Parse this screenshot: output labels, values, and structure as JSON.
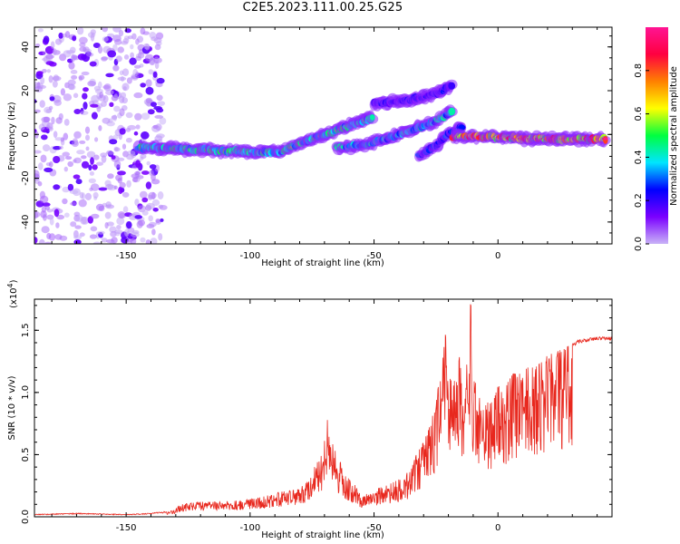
{
  "title": "C2E5.2023.111.00.25.G25",
  "colors": {
    "snr_line": "#e8281e",
    "background": "#ffffff"
  },
  "chart_data": [
    {
      "type": "heatmap",
      "xlabel": "Height of straight line (km)",
      "ylabel": "Frequency (Hz)",
      "xlim": [
        -187,
        46
      ],
      "ylim": [
        -50,
        49
      ],
      "xticks": [
        -150,
        -100,
        -50,
        0
      ],
      "yticks": [
        -40,
        -20,
        0,
        20,
        40
      ],
      "colorbar": {
        "label": "Normalized spectral amplitude",
        "ticks": [
          0.0,
          0.2,
          0.4,
          0.6,
          0.8
        ],
        "colormap": [
          "#c9b3f7",
          "#7a00ff",
          "#0000ff",
          "#00e5ff",
          "#00ff40",
          "#ffff00",
          "#ff8000",
          "#ff0040",
          "#ff1493"
        ]
      },
      "features": [
        {
          "name": "broadband noise",
          "x_range": [
            -187,
            -135
          ],
          "y_range": [
            -50,
            49
          ],
          "amplitude": 0.05
        },
        {
          "name": "band",
          "x": [
            -145,
            -120,
            -100,
            -88,
            -75,
            -65,
            -55,
            -50
          ],
          "y": [
            -6,
            -7,
            -8,
            -8,
            -2,
            2,
            6,
            8
          ],
          "amplitude": 0.5
        },
        {
          "name": "band",
          "x": [
            -65,
            -55,
            -45,
            -35,
            -25,
            -18
          ],
          "y": [
            -6,
            -5,
            -2,
            2,
            6,
            11
          ],
          "amplitude": 0.45
        },
        {
          "name": "band",
          "x": [
            -50,
            -40,
            -30,
            -22,
            -18
          ],
          "y": [
            14,
            15,
            17,
            20,
            23
          ],
          "amplitude": 0.25
        },
        {
          "name": "band",
          "x": [
            -32,
            -25,
            -20,
            -14
          ],
          "y": [
            -10,
            -5,
            0,
            4
          ],
          "amplitude": 0.3
        },
        {
          "name": "band",
          "x": [
            -18,
            -5,
            10,
            25,
            44
          ],
          "y": [
            -1,
            -1,
            -2,
            -2,
            -2
          ],
          "amplitude": 0.85
        }
      ]
    },
    {
      "type": "line",
      "xlabel": "Height of straight line (km)",
      "ylabel": "SNR (10 * v/v)",
      "yunit_label": "(x10",
      "yunit_exp": "4",
      "yunit_close": ")",
      "xlim": [
        -187,
        46
      ],
      "ylim": [
        0,
        1.75
      ],
      "xticks": [
        -150,
        -100,
        -50,
        0
      ],
      "yticks": [
        "0.0",
        "0.5",
        "1.0",
        "1.5"
      ],
      "series": [
        {
          "x": [
            -187,
            -170,
            -150,
            -140,
            -131,
            -128,
            -120,
            -110,
            -100,
            -95,
            -88,
            -80,
            -77,
            -74,
            -71,
            -69,
            -67,
            -65,
            -60,
            -57,
            -55,
            -52,
            -50,
            -45,
            -40,
            -35,
            -33,
            -30,
            -28,
            -26,
            -24,
            -21,
            -20,
            -18,
            -16,
            -14,
            -12,
            -11,
            -10,
            -8,
            -6,
            -4,
            -2,
            0,
            3,
            6,
            9,
            12,
            15,
            18,
            20,
            23,
            26,
            29,
            32,
            36,
            40,
            46
          ],
          "y": [
            0.02,
            0.03,
            0.02,
            0.03,
            0.05,
            0.1,
            0.12,
            0.12,
            0.14,
            0.16,
            0.2,
            0.22,
            0.3,
            0.4,
            0.5,
            0.8,
            0.6,
            0.5,
            0.3,
            0.25,
            0.15,
            0.2,
            0.22,
            0.25,
            0.3,
            0.38,
            0.5,
            0.6,
            0.7,
            0.85,
            1.05,
            1.5,
            1.1,
            1.2,
            1.4,
            1.1,
            1.3,
            1.75,
            1.1,
            1.05,
            1.0,
            0.95,
            0.95,
            1.05,
            1.05,
            1.15,
            1.15,
            1.2,
            1.2,
            1.25,
            1.3,
            1.32,
            1.35,
            1.38,
            1.42,
            1.44,
            1.45,
            1.45
          ]
        }
      ]
    }
  ]
}
